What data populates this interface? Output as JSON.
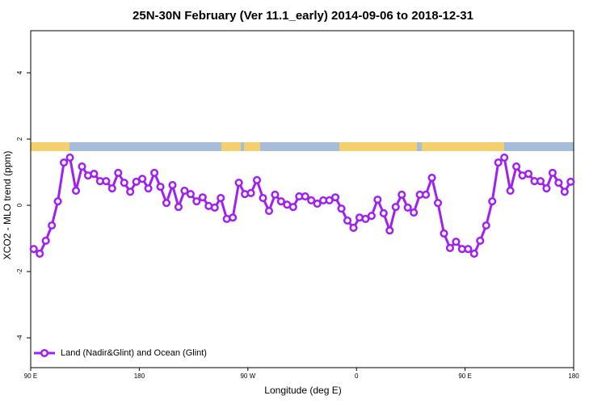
{
  "chart_data": {
    "type": "line",
    "title": "25N-30N February (Ver 11.1_early)   2014-09-06 to 2018-12-31",
    "x_label": "Longitude (deg E)",
    "y_label": "XCO2 - MLO trend (ppm)",
    "xlim": [
      90,
      540
    ],
    "ylim": [
      -4.9,
      5.27
    ],
    "xticks": [
      {
        "value": 90,
        "label": "90 E"
      },
      180,
      {
        "value": 270,
        "label": "90 W"
      },
      {
        "value": 360,
        "label": "0"
      },
      {
        "value": 450,
        "label": "90 E"
      },
      {
        "value": 540,
        "label": "180"
      }
    ],
    "yticks": [
      -4,
      -2,
      0,
      2,
      4
    ],
    "x": [
      92.5,
      97.5,
      102.5,
      107.5,
      112.5,
      117.5,
      122.5,
      127.5,
      132.5,
      137.5,
      142.5,
      147.5,
      152.5,
      157.5,
      162.5,
      167.5,
      172.5,
      177.5,
      182.5,
      187.5,
      192.5,
      197.5,
      202.5,
      207.5,
      212.5,
      217.5,
      222.5,
      227.5,
      232.5,
      237.5,
      242.5,
      247.5,
      252.5,
      257.5,
      262.5,
      267.5,
      272.5,
      277.5,
      282.5,
      287.5,
      292.5,
      297.5,
      302.5,
      307.5,
      312.5,
      317.5,
      322.5,
      327.5,
      332.5,
      337.5,
      342.5,
      347.5,
      352.5,
      357.5,
      362.5,
      367.5,
      372.5,
      377.5,
      382.5,
      387.5,
      392.5,
      397.5,
      402.5,
      407.5,
      412.5,
      417.5,
      422.5,
      427.5,
      432.5,
      437.5,
      442.5,
      447.5,
      452.5,
      457.5,
      462.5,
      467.5,
      472.5,
      477.5,
      482.5,
      487.5,
      492.5,
      497.5,
      502.5,
      507.5,
      512.5,
      517.5,
      522.5,
      527.5,
      532.5,
      537.5
    ],
    "series": [
      {
        "name": "Land (Nadir&Glint) and Ocean (Glint)",
        "color": "#a020f0",
        "values": [
          -1.32,
          -1.46,
          -1.07,
          -0.61,
          0.12,
          1.29,
          1.44,
          0.44,
          1.17,
          0.9,
          0.95,
          0.73,
          0.73,
          0.51,
          0.98,
          0.68,
          0.41,
          0.71,
          0.8,
          0.51,
          0.98,
          0.56,
          0.07,
          0.61,
          -0.05,
          0.44,
          0.34,
          0.12,
          0.24,
          -0.02,
          -0.07,
          0.22,
          -0.41,
          -0.37,
          0.68,
          0.34,
          0.37,
          0.76,
          0.22,
          -0.17,
          0.32,
          0.12,
          0.02,
          -0.05,
          0.27,
          0.27,
          0.15,
          0.05,
          0.15,
          0.15,
          0.24,
          -0.1,
          -0.46,
          -0.68,
          -0.37,
          -0.41,
          -0.32,
          0.17,
          -0.24,
          -0.76,
          -0.05,
          0.32,
          -0.07,
          -0.22,
          0.32,
          0.32,
          0.83,
          0.07,
          -0.85,
          -1.29,
          -1.1,
          -1.32,
          -1.32,
          -1.46,
          -1.07,
          -0.61,
          0.12,
          1.29,
          1.44,
          0.44,
          1.17,
          0.9,
          0.95,
          0.73,
          0.73,
          0.51,
          0.98,
          0.68,
          0.41,
          0.71
        ]
      }
    ]
  }
}
